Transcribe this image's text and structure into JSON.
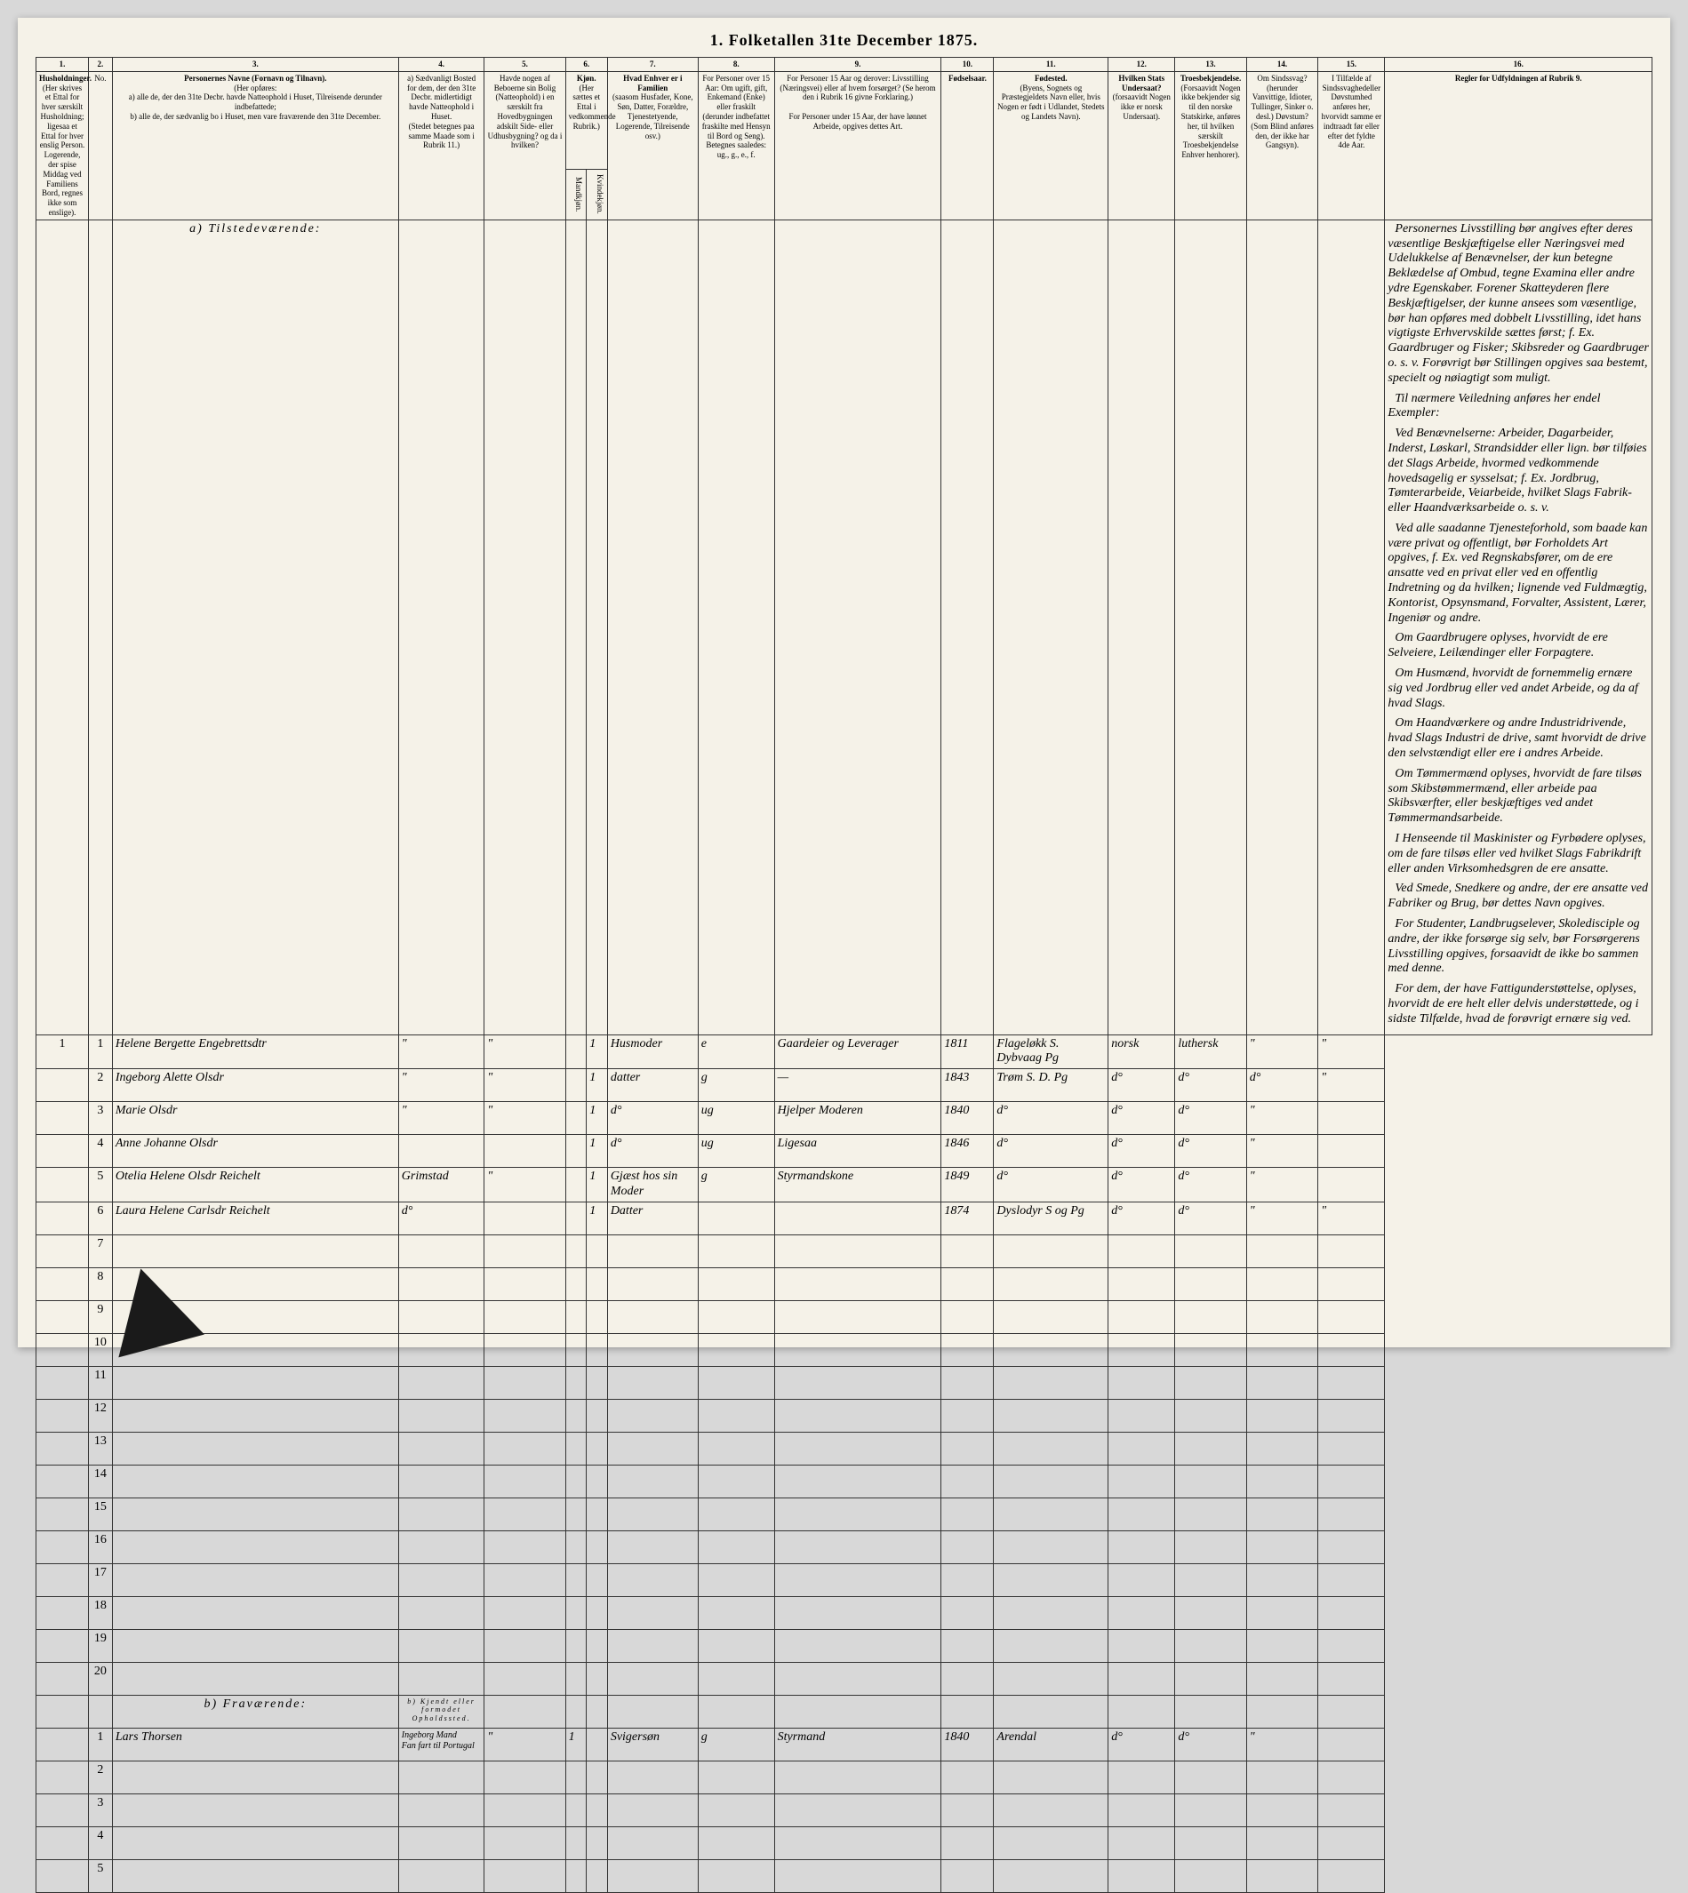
{
  "title": "1. Folketallen 31te December 1875.",
  "column_numbers": [
    "1.",
    "2.",
    "3.",
    "4.",
    "5.",
    "6.",
    "7.",
    "8.",
    "9.",
    "10.",
    "11.",
    "12.",
    "13.",
    "14.",
    "15.",
    "16."
  ],
  "headers": {
    "c1": "Husholdninger.",
    "c1_sub": "(Her skrives et Ettal for hver særskilt Husholdning; ligesaa et Ettal for hver enslig Person. Logerende, der spise Middag ved Familiens Bord, regnes ikke som enslige).",
    "c2": "No.",
    "c3_title": "Personernes Navne (Fornavn og Tilnavn).",
    "c3_sub": "(Her opføres:",
    "c3_a": "a) alle de, der den 31te Decbr. havde Natteophold i Huset, Tilreisende derunder indbefattede;",
    "c3_b": "b) alle de, der sædvanlig bo i Huset, men vare fraværende den 31te December.",
    "c4": "a) Sædvanligt Bosted for dem, der den 31te Decbr. midlertidigt havde Natteophold i Huset.",
    "c4_sub": "(Stedet betegnes paa samme Maade som i Rubrik 11.)",
    "c5": "Havde nogen af Beboerne sin Bolig (Natteophold) i en særskilt fra Hovedbygningen adskilt Side- eller Udhusbygning? og da i hvilken?",
    "c6": "Kjøn.",
    "c6_sub": "(Her sættes et Ettal i vedkommende Rubrik.)",
    "c6a": "Mandkjøn.",
    "c6b": "Kvindekjøn.",
    "c7": "Hvad Enhver er i Familien",
    "c7_sub": "(saasom Husfader, Kone, Søn, Datter, Forældre, Tjenestetyende, Logerende, Tilreisende osv.)",
    "c8": "For Personer over 15 Aar: Om ugift, gift, Enkemand (Enke) eller fraskilt (derunder indbefattet fraskilte med Hensyn til Bord og Seng). Betegnes saaledes: ug., g., e., f.",
    "c9": "For Personer 15 Aar og derover: Livsstilling (Næringsvei) eller af hvem forsørget? (Se herom den i Rubrik 16 givne Forklaring.)",
    "c9b": "For Personer under 15 Aar, der have lønnet Arbeide, opgives dettes Art.",
    "c10": "Fødselsaar.",
    "c11": "Fødested.",
    "c11_sub": "(Byens, Sognets og Præstegjeldets Navn eller, hvis Nogen er født i Udlandet, Stedets og Landets Navn).",
    "c12": "Hvilken Stats Undersaat?",
    "c12_sub": "(forsaavidt Nogen ikke er norsk Undersaat).",
    "c13": "Troesbekjendelse.",
    "c13_sub": "(Forsaavidt Nogen ikke bekjender sig til den norske Statskirke, anføres her, til hvilken særskilt Troesbekjendelse Enhver henhorer).",
    "c14": "Om Sindssvag? (herunder Vanvittige, Idioter, Tullinger, Sinker o. desl.) Døvstum? (Som Blind anføres den, der ikke har Gangsyn).",
    "c15": "I Tilfælde af Sindssvaghedeller Døvstumhed anføres her, hvorvidt samme er indtraadt før eller efter det fyldte 4de Aar.",
    "c16": "Regler for Udfyldningen af Rubrik 9."
  },
  "section_a": "a) Tilstedeværende:",
  "section_b": "b) Fraværende:",
  "section_b_col": "b) Kjendt eller formodet Opholdssted.",
  "rows_a": [
    {
      "n": "1",
      "hh": "1",
      "name": "Helene Bergette Engebrettsdtr",
      "c4": "\"",
      "c5": "\"",
      "c6b": "1",
      "c7": "Husmoder",
      "c8": "e",
      "c9": "Gaardeier og Leverager",
      "c10": "1811",
      "c11": "Flageløkk S. Dybvaag Pg",
      "c12": "norsk",
      "c13": "luthersk",
      "c14": "\"",
      "c15": "\""
    },
    {
      "n": "2",
      "hh": "",
      "name": "Ingeborg Alette Olsdr",
      "c4": "\"",
      "c5": "\"",
      "c6b": "1",
      "c7": "datter",
      "c8": "g",
      "c9": "—",
      "c10": "1843",
      "c11": "Trøm S. D. Pg",
      "c12": "d°",
      "c13": "d°",
      "c14": "d°",
      "c15": "\""
    },
    {
      "n": "3",
      "hh": "",
      "name": "Marie Olsdr",
      "c4": "\"",
      "c5": "\"",
      "c6b": "1",
      "c7": "d°",
      "c8": "ug",
      "c9": "Hjelper Moderen",
      "c10": "1840",
      "c11": "d°",
      "c12": "d°",
      "c13": "d°",
      "c14": "\"",
      "c15": ""
    },
    {
      "n": "4",
      "hh": "",
      "name": "Anne Johanne Olsdr",
      "c4": "",
      "c5": "",
      "c6b": "1",
      "c7": "d°",
      "c8": "ug",
      "c9": "Ligesaa",
      "c10": "1846",
      "c11": "d°",
      "c12": "d°",
      "c13": "d°",
      "c14": "\"",
      "c15": ""
    },
    {
      "n": "5",
      "hh": "",
      "name": "Otelia Helene Olsdr Reichelt",
      "c4": "Grimstad",
      "c5": "\"",
      "c6b": "1",
      "c7": "Gjæst hos sin Moder",
      "c8": "g",
      "c9": "Styrmandskone",
      "c10": "1849",
      "c11": "d°",
      "c12": "d°",
      "c13": "d°",
      "c14": "\"",
      "c15": ""
    },
    {
      "n": "6",
      "hh": "",
      "name": "Laura Helene Carlsdr Reichelt",
      "c4": "d°",
      "c5": "",
      "c6b": "1",
      "c7": "Datter",
      "c8": "",
      "c9": "",
      "c10": "1874",
      "c11": "Dyslodyr S og Pg",
      "c12": "d°",
      "c13": "d°",
      "c14": "\"",
      "c15": "\""
    }
  ],
  "empty_rows_a": [
    "7",
    "8",
    "9",
    "10",
    "11",
    "12",
    "13",
    "14",
    "15",
    "16",
    "17",
    "18",
    "19",
    "20"
  ],
  "rows_b": [
    {
      "n": "1",
      "name": "Lars Thorsen",
      "c4a": "Ingeborg Mand",
      "c4b": "Fan fart til Portugal",
      "c5": "\"",
      "c6a": "1",
      "c7": "Svigersøn",
      "c8": "g",
      "c9": "Styrmand",
      "c10": "1840",
      "c11": "Arendal",
      "c12": "d°",
      "c13": "d°",
      "c14": "\"",
      "c15": ""
    }
  ],
  "empty_rows_b": [
    "2",
    "3",
    "4",
    "5"
  ],
  "rules_paragraphs": [
    "Personernes Livsstilling bør angives efter deres væsentlige Beskjæftigelse eller Næringsvei med Udelukkelse af Benævnelser, der kun betegne Beklædelse af Ombud, tegne Examina eller andre ydre Egenskaber. Forener Skatteyderen flere Beskjæftigelser, der kunne ansees som væsentlige, bør han opføres med dobbelt Livsstilling, idet hans vigtigste Erhvervskilde sættes først; f. Ex. Gaardbruger og Fisker; Skibsreder og Gaardbruger o. s. v. Forøvrigt bør Stillingen opgives saa bestemt, specielt og nøiagtigt som muligt.",
    "Til nærmere Veiledning anføres her endel Exempler:",
    "Ved Benævnelserne: Arbeider, Dagarbeider, Inderst, Løskarl, Strandsidder eller lign. bør tilføies det Slags Arbeide, hvormed vedkommende hovedsagelig er sysselsat; f. Ex. Jordbrug, Tømterarbeide, Veiarbeide, hvilket Slags Fabrik- eller Haandværksarbeide o. s. v.",
    "Ved alle saadanne Tjenesteforhold, som baade kan være privat og offentligt, bør Forholdets Art opgives, f. Ex. ved Regnskabsfører, om de ere ansatte ved en privat eller ved en offentlig Indretning og da hvilken; lignende ved Fuldmægtig, Kontorist, Opsynsmand, Forvalter, Assistent, Lærer, Ingeniør og andre.",
    "Om Gaardbrugere oplyses, hvorvidt de ere Selveiere, Leilændinger eller Forpagtere.",
    "Om Husmænd, hvorvidt de fornemmelig ernære sig ved Jordbrug eller ved andet Arbeide, og da af hvad Slags.",
    "Om Haandværkere og andre Industridrivende, hvad Slags Industri de drive, samt hvorvidt de drive den selvstændigt eller ere i andres Arbeide.",
    "Om Tømmermænd oplyses, hvorvidt de fare tilsøs som Skibstømmermænd, eller arbeide paa Skibsværfter, eller beskjæftiges ved andet Tømmermandsarbeide.",
    "I Henseende til Maskinister og Fyrbødere oplyses, om de fare tilsøs eller ved hvilket Slags Fabrikdrift eller anden Virksomhedsgren de ere ansatte.",
    "Ved Smede, Snedkere og andre, der ere ansatte ved Fabriker og Brug, bør dettes Navn opgives.",
    "For Studenter, Landbrugselever, Skoledisciple og andre, der ikke forsørge sig selv, bør Forsørgerens Livsstilling opgives, forsaavidt de ikke bo sammen med denne.",
    "For dem, der have Fattigunderstøttelse, oplyses, hvorvidt de ere helt eller delvis understøttede, og i sidste Tilfælde, hvad de forøvrigt ernære sig ved."
  ],
  "colors": {
    "page_bg": "#f5f2e8",
    "body_bg": "#d8d8d8",
    "border": "#333333",
    "ink": "#3a3a4a"
  }
}
